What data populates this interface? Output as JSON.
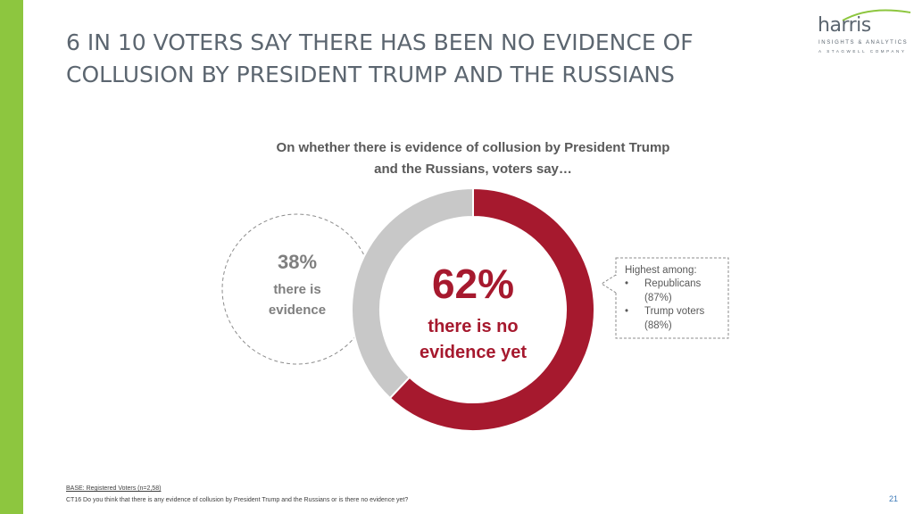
{
  "title": {
    "line1": "6 IN 10 VOTERS SAY THERE HAS BEEN NO EVIDENCE OF",
    "line2": "COLLUSION BY PRESIDENT TRUMP AND THE RUSSIANS"
  },
  "logo": {
    "wordmark": "harris",
    "tagline": "INSIGHTS & ANALYTICS",
    "subtag": "A STAGWELL COMPANY"
  },
  "subtitle": {
    "line1": "On whether there is evidence of collusion by President Trump",
    "line2": "and the Russians, voters say…"
  },
  "chart_data": {
    "type": "pie",
    "donut": true,
    "categories": [
      "there is no evidence yet",
      "there is evidence"
    ],
    "values": [
      62,
      38
    ],
    "colors": [
      "#a6192e",
      "#c8c8c8"
    ],
    "labels": {
      "no_evidence_pct": "62%",
      "no_evidence_line1": "there is no",
      "no_evidence_line2": "evidence yet",
      "evidence_pct": "38%",
      "evidence_line1": "there is",
      "evidence_line2": "evidence"
    }
  },
  "callout": {
    "heading": "Highest among:",
    "items": [
      {
        "bullet": "•",
        "line1": "Republicans",
        "line2": "(87%)"
      },
      {
        "bullet": "•",
        "line1": "Trump voters",
        "line2": "(88%)"
      }
    ]
  },
  "footer": {
    "base": "BASE: Registered Voters (n=2,58)",
    "question": "CT16 Do you think that there is any evidence of collusion by President Trump and the Russians or is there no evidence yet?",
    "page": "21"
  },
  "colors": {
    "accent_green": "#8dc63f",
    "primary_red": "#a6192e",
    "secondary_gray": "#c8c8c8",
    "title_gray": "#5c6670"
  }
}
